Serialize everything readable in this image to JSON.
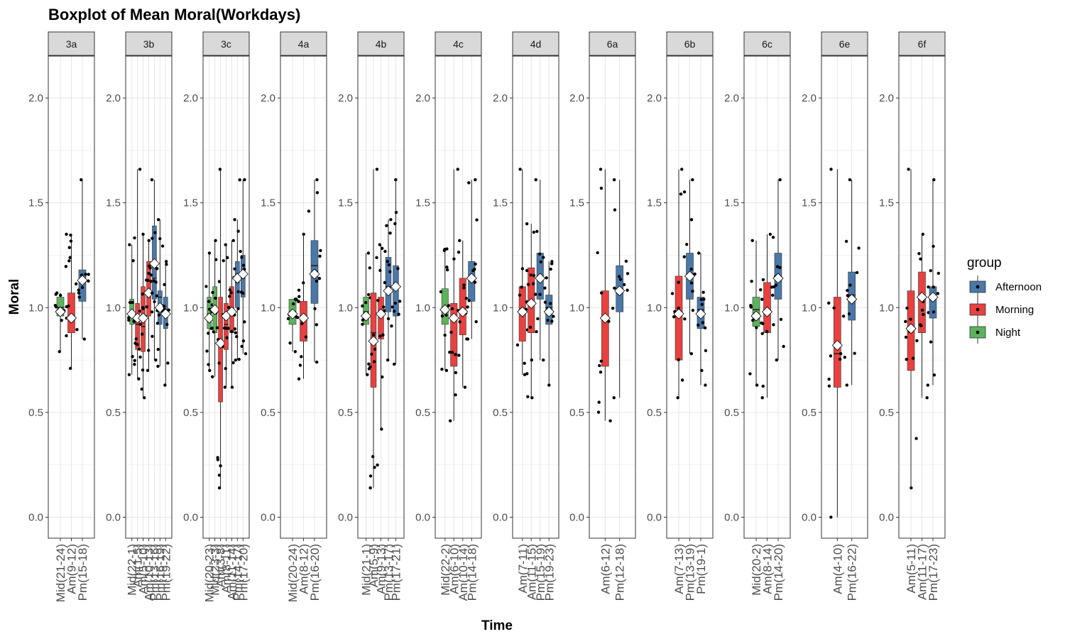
{
  "chart_data": {
    "type": "box",
    "title": "Boxplot of Mean Moral(Workdays)",
    "xlabel": "Time",
    "ylabel": "Moral",
    "ylim": [
      -0.1,
      2.2
    ],
    "yticks": [
      "0.0",
      "0.5",
      "1.0",
      "1.5",
      "2.0"
    ],
    "grid": true,
    "legend": {
      "title": "group",
      "position": "right",
      "entries": [
        {
          "label": "Afternoon",
          "color": "#4a78a8"
        },
        {
          "label": "Morning",
          "color": "#e8413f"
        },
        {
          "label": "Night",
          "color": "#5db35c"
        }
      ]
    },
    "facets": [
      {
        "name": "3a",
        "boxes": [
          {
            "label": "Mid(21-24)",
            "group": "Night",
            "q1": 0.96,
            "median": 1.0,
            "q3": 1.05,
            "lo": 0.79,
            "hi": 1.07,
            "mean": 0.98
          },
          {
            "label": "Am(9-12)",
            "group": "Morning",
            "q1": 0.88,
            "median": 0.96,
            "q3": 1.07,
            "lo": 0.71,
            "hi": 1.35,
            "mean": 0.95
          },
          {
            "label": "Pm(15-18)",
            "group": "Afternoon",
            "q1": 1.03,
            "median": 1.13,
            "q3": 1.18,
            "lo": 0.85,
            "hi": 1.61,
            "mean": 1.13
          }
        ]
      },
      {
        "name": "3b",
        "boxes": [
          {
            "label": "Mid(22-1)",
            "group": "Night",
            "q1": 0.92,
            "median": 0.98,
            "q3": 1.04,
            "lo": 0.68,
            "hi": 1.3,
            "mean": 0.97
          },
          {
            "label": "Am(1-5)",
            "group": "Morning",
            "q1": 0.8,
            "median": 0.92,
            "q3": 1.02,
            "lo": 0.66,
            "hi": 1.66,
            "mean": 0.95
          },
          {
            "label": "Am(5-10)",
            "group": "Morning",
            "q1": 0.79,
            "median": 0.91,
            "q3": 1.1,
            "lo": 0.57,
            "hi": 1.35,
            "mean": 0.95
          },
          {
            "label": "Am(10-13)",
            "group": "Morning",
            "q1": 0.96,
            "median": 1.05,
            "q3": 1.22,
            "lo": 0.7,
            "hi": 1.32,
            "mean": 1.07
          },
          {
            "label": "Pm(13-16)",
            "group": "Afternoon",
            "q1": 1.04,
            "median": 1.14,
            "q3": 1.39,
            "lo": 0.75,
            "hi": 1.61,
            "mean": 1.21
          },
          {
            "label": "Pm(16-19)",
            "group": "Afternoon",
            "q1": 0.92,
            "median": 1.05,
            "q3": 1.08,
            "lo": 0.72,
            "hi": 1.42,
            "mean": 1.0
          },
          {
            "label": "Pm(19-22)",
            "group": "Afternoon",
            "q1": 0.9,
            "median": 0.98,
            "q3": 1.05,
            "lo": 0.63,
            "hi": 1.22,
            "mean": 0.97
          }
        ]
      },
      {
        "name": "3c",
        "boxes": [
          {
            "label": "Mid(20-23)",
            "group": "Night",
            "q1": 0.9,
            "median": 0.97,
            "q3": 1.05,
            "lo": 0.7,
            "hi": 1.26,
            "mean": 0.95
          },
          {
            "label": "Mid(23-3)",
            "group": "Night",
            "q1": 0.88,
            "median": 0.98,
            "q3": 1.1,
            "lo": 0.67,
            "hi": 1.32,
            "mean": 0.99
          },
          {
            "label": "Am(3-8)",
            "group": "Morning",
            "q1": 0.55,
            "median": 0.84,
            "q3": 1.05,
            "lo": 0.14,
            "hi": 1.66,
            "mean": 0.83
          },
          {
            "label": "Am(8-11)",
            "group": "Morning",
            "q1": 0.8,
            "median": 0.92,
            "q3": 1.02,
            "lo": 0.62,
            "hi": 1.3,
            "mean": 0.96
          },
          {
            "label": "Am(11-14)",
            "group": "Morning",
            "q1": 0.88,
            "median": 0.98,
            "q3": 1.1,
            "lo": 0.62,
            "hi": 1.32,
            "mean": 0.98
          },
          {
            "label": "Pm(14-17)",
            "group": "Afternoon",
            "q1": 1.0,
            "median": 1.12,
            "q3": 1.22,
            "lo": 0.75,
            "hi": 1.42,
            "mean": 1.14
          },
          {
            "label": "Pm(17-20)",
            "group": "Afternoon",
            "q1": 1.05,
            "median": 1.14,
            "q3": 1.25,
            "lo": 0.78,
            "hi": 1.61,
            "mean": 1.16
          }
        ]
      },
      {
        "name": "4a",
        "boxes": [
          {
            "label": "Mid(20-24)",
            "group": "Night",
            "q1": 0.92,
            "median": 0.98,
            "q3": 1.04,
            "lo": 0.79,
            "hi": 1.04,
            "mean": 0.97
          },
          {
            "label": "Am(8-12)",
            "group": "Morning",
            "q1": 0.84,
            "median": 0.96,
            "q3": 1.03,
            "lo": 0.66,
            "hi": 1.35,
            "mean": 0.95
          },
          {
            "label": "Pm(16-20)",
            "group": "Afternoon",
            "q1": 1.02,
            "median": 1.2,
            "q3": 1.32,
            "lo": 0.74,
            "hi": 1.61,
            "mean": 1.16
          }
        ]
      },
      {
        "name": "4b",
        "boxes": [
          {
            "label": "Mid(21-1)",
            "group": "Night",
            "q1": 0.92,
            "median": 0.98,
            "q3": 1.05,
            "lo": 0.68,
            "hi": 1.26,
            "mean": 0.96
          },
          {
            "label": "Am(5-9)",
            "group": "Morning",
            "q1": 0.62,
            "median": 0.88,
            "q3": 1.07,
            "lo": 0.14,
            "hi": 1.66,
            "mean": 0.84
          },
          {
            "label": "Am(9-13)",
            "group": "Morning",
            "q1": 0.85,
            "median": 0.96,
            "q3": 1.05,
            "lo": 0.42,
            "hi": 1.3,
            "mean": 0.97
          },
          {
            "label": "Pm(13-17)",
            "group": "Afternoon",
            "q1": 0.98,
            "median": 1.1,
            "q3": 1.24,
            "lo": 0.75,
            "hi": 1.42,
            "mean": 1.08
          },
          {
            "label": "Pm(17-21)",
            "group": "Afternoon",
            "q1": 0.96,
            "median": 1.1,
            "q3": 1.2,
            "lo": 0.73,
            "hi": 1.61,
            "mean": 1.1
          }
        ]
      },
      {
        "name": "4c",
        "boxes": [
          {
            "label": "Mid(22-2)",
            "group": "Night",
            "q1": 0.92,
            "median": 0.98,
            "q3": 1.09,
            "lo": 0.7,
            "hi": 1.28,
            "mean": 0.99
          },
          {
            "label": "Am(6-10)",
            "group": "Morning",
            "q1": 0.72,
            "median": 0.94,
            "q3": 1.02,
            "lo": 0.46,
            "hi": 1.66,
            "mean": 0.95
          },
          {
            "label": "Am(10-14)",
            "group": "Morning",
            "q1": 0.87,
            "median": 0.99,
            "q3": 1.14,
            "lo": 0.62,
            "hi": 1.32,
            "mean": 0.98
          },
          {
            "label": "Pm(14-18)",
            "group": "Afternoon",
            "q1": 1.03,
            "median": 1.15,
            "q3": 1.22,
            "lo": 0.85,
            "hi": 1.61,
            "mean": 1.14
          }
        ]
      },
      {
        "name": "4d",
        "boxes": [
          {
            "label": "Am(7-11)",
            "group": "Morning",
            "q1": 0.84,
            "median": 0.98,
            "q3": 1.1,
            "lo": 0.68,
            "hi": 1.66,
            "mean": 0.98
          },
          {
            "label": "Am(11-15)",
            "group": "Morning",
            "q1": 0.88,
            "median": 1.02,
            "q3": 1.19,
            "lo": 0.57,
            "hi": 1.4,
            "mean": 1.02
          },
          {
            "label": "Pm(15-19)",
            "group": "Afternoon",
            "q1": 1.04,
            "median": 1.15,
            "q3": 1.26,
            "lo": 0.75,
            "hi": 1.61,
            "mean": 1.14
          },
          {
            "label": "Pm(19-23)",
            "group": "Afternoon",
            "q1": 0.92,
            "median": 1.0,
            "q3": 1.06,
            "lo": 0.63,
            "hi": 1.22,
            "mean": 0.98
          }
        ]
      },
      {
        "name": "6a",
        "boxes": [
          {
            "label": "Am(6-12)",
            "group": "Morning",
            "q1": 0.72,
            "median": 0.94,
            "q3": 1.08,
            "lo": 0.46,
            "hi": 1.66,
            "mean": 0.95
          },
          {
            "label": "Pm(12-18)",
            "group": "Afternoon",
            "q1": 0.98,
            "median": 1.08,
            "q3": 1.2,
            "lo": 0.57,
            "hi": 1.61,
            "mean": 1.08
          }
        ]
      },
      {
        "name": "6b",
        "boxes": [
          {
            "label": "Am(7-13)",
            "group": "Morning",
            "q1": 0.75,
            "median": 0.98,
            "q3": 1.15,
            "lo": 0.57,
            "hi": 1.66,
            "mean": 0.97
          },
          {
            "label": "Pm(13-19)",
            "group": "Afternoon",
            "q1": 1.04,
            "median": 1.16,
            "q3": 1.26,
            "lo": 0.78,
            "hi": 1.61,
            "mean": 1.15
          },
          {
            "label": "Pm(19-1)",
            "group": "Afternoon",
            "q1": 0.9,
            "median": 0.99,
            "q3": 1.05,
            "lo": 0.63,
            "hi": 1.26,
            "mean": 0.97
          }
        ]
      },
      {
        "name": "6c",
        "boxes": [
          {
            "label": "Mid(20-2)",
            "group": "Night",
            "q1": 0.91,
            "median": 0.99,
            "q3": 1.05,
            "lo": 0.63,
            "hi": 1.32,
            "mean": 0.96
          },
          {
            "label": "Am(8-14)",
            "group": "Morning",
            "q1": 0.88,
            "median": 0.99,
            "q3": 1.12,
            "lo": 0.57,
            "hi": 1.35,
            "mean": 0.98
          },
          {
            "label": "Pm(14-20)",
            "group": "Afternoon",
            "q1": 1.04,
            "median": 1.15,
            "q3": 1.26,
            "lo": 0.75,
            "hi": 1.61,
            "mean": 1.14
          }
        ]
      },
      {
        "name": "6e",
        "boxes": [
          {
            "label": "Am(4-10)",
            "group": "Morning",
            "q1": 0.62,
            "median": 0.78,
            "q3": 1.05,
            "lo": 0.0,
            "hi": 1.66,
            "mean": 0.82
          },
          {
            "label": "Pm(16-22)",
            "group": "Afternoon",
            "q1": 0.94,
            "median": 1.06,
            "q3": 1.17,
            "lo": 0.63,
            "hi": 1.61,
            "mean": 1.04
          }
        ]
      },
      {
        "name": "6f",
        "boxes": [
          {
            "label": "Am(5-11)",
            "group": "Morning",
            "q1": 0.7,
            "median": 0.9,
            "q3": 1.08,
            "lo": 0.14,
            "hi": 1.66,
            "mean": 0.9
          },
          {
            "label": "Am(11-17)",
            "group": "Morning",
            "q1": 0.88,
            "median": 1.04,
            "q3": 1.17,
            "lo": 0.57,
            "hi": 1.35,
            "mean": 1.05
          },
          {
            "label": "Pm(17-23)",
            "group": "Afternoon",
            "q1": 0.95,
            "median": 1.05,
            "q3": 1.1,
            "lo": 0.63,
            "hi": 1.61,
            "mean": 1.05
          }
        ]
      }
    ]
  }
}
